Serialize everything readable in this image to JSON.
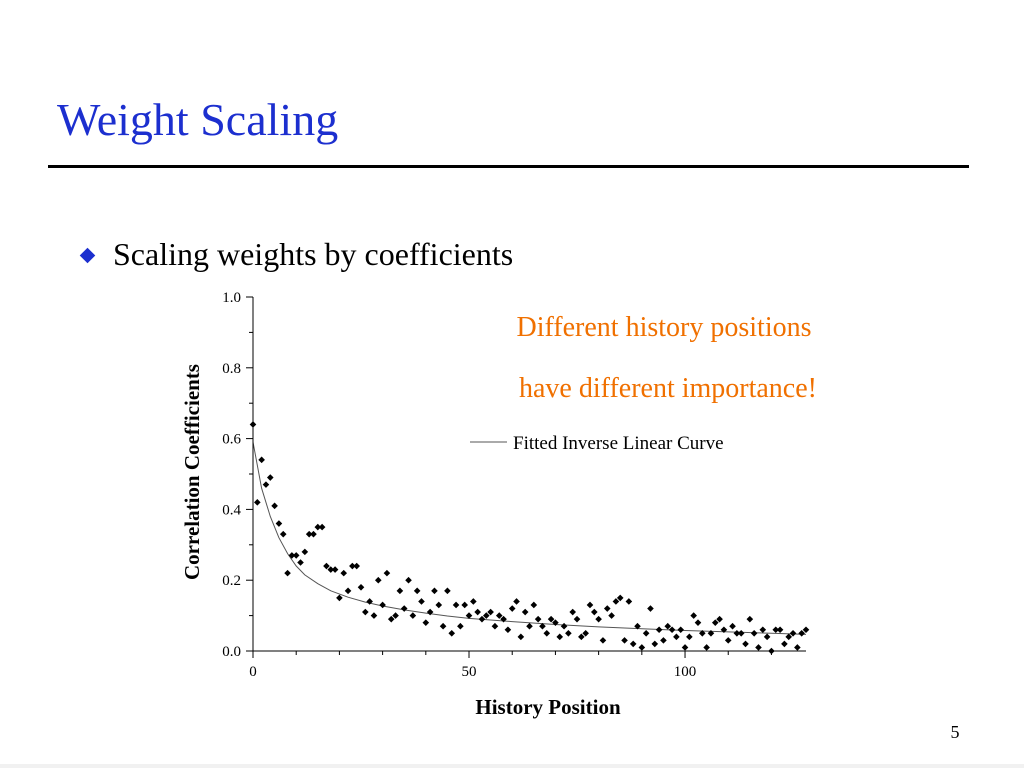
{
  "slide": {
    "title": "Weight Scaling",
    "bullet": "Scaling weights by coefficients",
    "annotation": [
      "Different history positions",
      "have different importance!"
    ],
    "page_number": "5"
  },
  "colors": {
    "title": "#1c2fcf",
    "bullet": "#1c2fcf",
    "annotation": "#f07000",
    "data": "#000000"
  },
  "chart_data": {
    "type": "scatter",
    "xlabel": "History Position",
    "ylabel": "Correlation Coefficients",
    "xlim": [
      0,
      128
    ],
    "ylim": [
      0.0,
      1.0
    ],
    "x_ticks": [
      {
        "value": 0,
        "label": "0"
      },
      {
        "value": 50,
        "label": "50"
      },
      {
        "value": 100,
        "label": "100"
      }
    ],
    "y_ticks": [
      {
        "value": 0.0,
        "label": "0.0"
      },
      {
        "value": 0.2,
        "label": "0.2"
      },
      {
        "value": 0.4,
        "label": "0.4"
      },
      {
        "value": 0.6,
        "label": "0.6"
      },
      {
        "value": 0.8,
        "label": "0.8"
      },
      {
        "value": 1.0,
        "label": "1.0"
      }
    ],
    "legend": {
      "label": "Fitted Inverse Linear Curve",
      "position": "top-right"
    },
    "grid": false,
    "fitted_curve": {
      "name": "Fitted Inverse Linear Curve",
      "points": [
        [
          0,
          0.59
        ],
        [
          2,
          0.46
        ],
        [
          4,
          0.38
        ],
        [
          6,
          0.32
        ],
        [
          8,
          0.275
        ],
        [
          10,
          0.24
        ],
        [
          12,
          0.215
        ],
        [
          15,
          0.19
        ],
        [
          18,
          0.17
        ],
        [
          22,
          0.152
        ],
        [
          26,
          0.138
        ],
        [
          30,
          0.127
        ],
        [
          35,
          0.116
        ],
        [
          40,
          0.107
        ],
        [
          45,
          0.099
        ],
        [
          50,
          0.092
        ],
        [
          60,
          0.083
        ],
        [
          70,
          0.075
        ],
        [
          80,
          0.068
        ],
        [
          90,
          0.063
        ],
        [
          100,
          0.058
        ],
        [
          110,
          0.054
        ],
        [
          120,
          0.05
        ],
        [
          128,
          0.047
        ]
      ]
    },
    "series": [
      {
        "marker": "diamond",
        "x": [
          0,
          1,
          2,
          3,
          4,
          5,
          6,
          7,
          8,
          9,
          10,
          11,
          12,
          13,
          14,
          15,
          16,
          17,
          18,
          19,
          20,
          21,
          22,
          23,
          24,
          25,
          26,
          27,
          28,
          29,
          30,
          31,
          32,
          33,
          34,
          35,
          36,
          37,
          38,
          39,
          40,
          41,
          42,
          43,
          44,
          45,
          46,
          47,
          48,
          49,
          50,
          51,
          52,
          53,
          54,
          55,
          56,
          57,
          58,
          59,
          60,
          61,
          62,
          63,
          64,
          65,
          66,
          67,
          68,
          69,
          70,
          71,
          72,
          73,
          74,
          75,
          76,
          77,
          78,
          79,
          80,
          81,
          82,
          83,
          84,
          85,
          86,
          87,
          88,
          89,
          90,
          91,
          92,
          93,
          94,
          95,
          96,
          97,
          98,
          99,
          100,
          101,
          102,
          103,
          104,
          105,
          106,
          107,
          108,
          109,
          110,
          111,
          112,
          113,
          114,
          115,
          116,
          117,
          118,
          119,
          120,
          121,
          122,
          123,
          124,
          125,
          126,
          127,
          128
        ],
        "y": [
          0.64,
          0.42,
          0.54,
          0.47,
          0.49,
          0.41,
          0.36,
          0.33,
          0.22,
          0.27,
          0.27,
          0.25,
          0.28,
          0.33,
          0.33,
          0.35,
          0.35,
          0.24,
          0.23,
          0.23,
          0.15,
          0.22,
          0.17,
          0.24,
          0.24,
          0.18,
          0.11,
          0.14,
          0.1,
          0.2,
          0.13,
          0.22,
          0.09,
          0.1,
          0.17,
          0.12,
          0.2,
          0.1,
          0.17,
          0.14,
          0.08,
          0.11,
          0.17,
          0.13,
          0.07,
          0.17,
          0.05,
          0.13,
          0.07,
          0.13,
          0.1,
          0.14,
          0.11,
          0.09,
          0.1,
          0.11,
          0.07,
          0.1,
          0.09,
          0.06,
          0.12,
          0.14,
          0.04,
          0.11,
          0.07,
          0.13,
          0.09,
          0.07,
          0.05,
          0.09,
          0.08,
          0.04,
          0.07,
          0.05,
          0.11,
          0.09,
          0.04,
          0.05,
          0.13,
          0.11,
          0.09,
          0.03,
          0.12,
          0.1,
          0.14,
          0.15,
          0.03,
          0.14,
          0.02,
          0.07,
          0.01,
          0.05,
          0.12,
          0.02,
          0.06,
          0.03,
          0.07,
          0.06,
          0.04,
          0.06,
          0.01,
          0.04,
          0.1,
          0.08,
          0.05,
          0.01,
          0.05,
          0.08,
          0.09,
          0.06,
          0.03,
          0.07,
          0.05,
          0.05,
          0.02,
          0.09,
          0.05,
          0.01,
          0.06,
          0.04,
          0.0,
          0.06,
          0.06,
          0.02,
          0.04,
          0.05,
          0.01,
          0.05,
          0.06
        ]
      }
    ]
  }
}
